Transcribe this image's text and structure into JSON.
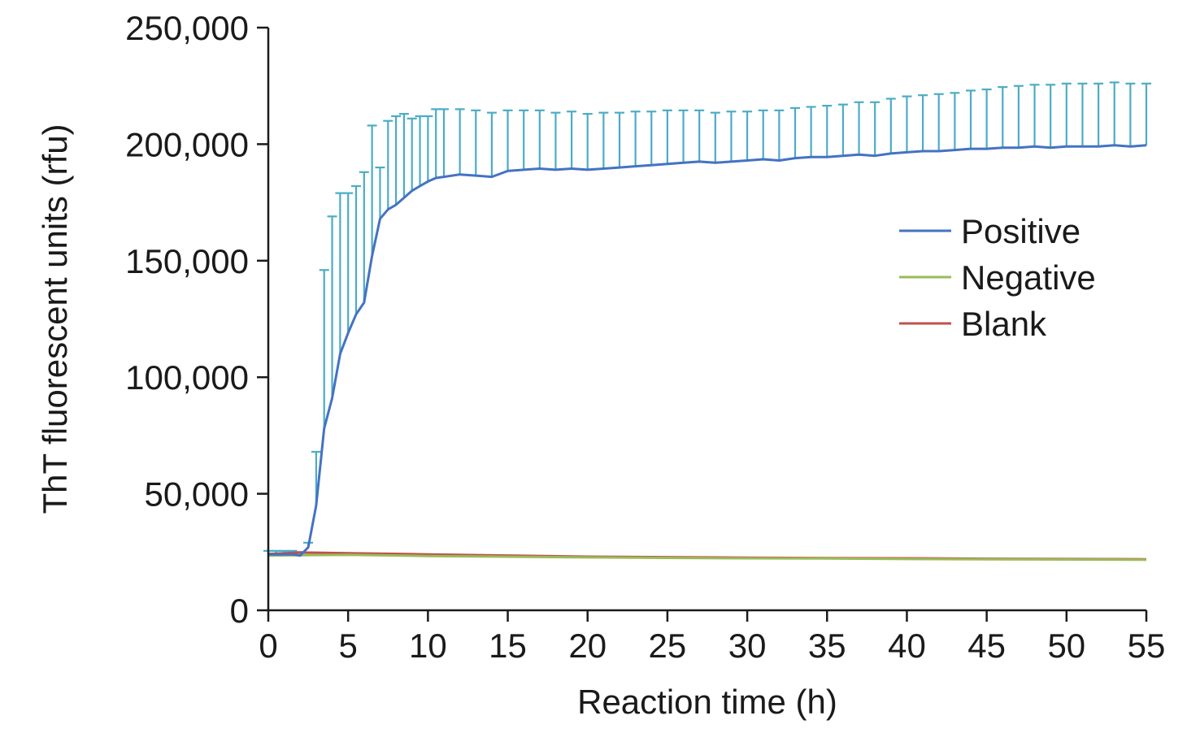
{
  "chart_data": {
    "type": "line",
    "title": "",
    "xlabel": "Reaction time (h)",
    "ylabel": "ThT fluorescent units (rfu)",
    "xlim": [
      0,
      55
    ],
    "ylim": [
      0,
      250000
    ],
    "x_ticks": [
      "0",
      "5",
      "10",
      "15",
      "20",
      "25",
      "30",
      "35",
      "40",
      "45",
      "50",
      "55"
    ],
    "y_ticks": [
      "0",
      "50,000",
      "100,000",
      "150,000",
      "200,000",
      "250,000"
    ],
    "grid": false,
    "legend_position": "right-middle",
    "error_bar_color": "#4bacc6",
    "series": [
      {
        "name": "Positive",
        "color": "#4472c4",
        "has_error_bars": true,
        "x": [
          0,
          0.5,
          1,
          1.5,
          2,
          2.5,
          3,
          3.5,
          4,
          4.5,
          5,
          5.5,
          6,
          6.5,
          7,
          7.5,
          8,
          8.5,
          9,
          9.5,
          10,
          10.5,
          11,
          12,
          13,
          14,
          15,
          16,
          17,
          18,
          19,
          20,
          21,
          22,
          23,
          24,
          25,
          26,
          27,
          28,
          29,
          30,
          31,
          32,
          33,
          34,
          35,
          36,
          37,
          38,
          39,
          40,
          41,
          42,
          43,
          44,
          45,
          46,
          47,
          48,
          49,
          50,
          51,
          52,
          53,
          54,
          55
        ],
        "y": [
          24000,
          24000,
          24000,
          24000,
          23500,
          27000,
          45000,
          78000,
          91000,
          110000,
          119000,
          127000,
          132000,
          152000,
          168000,
          172000,
          174000,
          177000,
          180000,
          182000,
          184000,
          185500,
          186000,
          187000,
          186500,
          186000,
          188500,
          189000,
          189500,
          189000,
          189500,
          189000,
          189500,
          190000,
          190500,
          191000,
          191500,
          192000,
          192500,
          192000,
          192500,
          193000,
          193500,
          193000,
          194000,
          194500,
          194500,
          195000,
          195500,
          195000,
          196000,
          196500,
          197000,
          197000,
          197500,
          198000,
          198000,
          198500,
          198500,
          199000,
          198500,
          199000,
          199000,
          199000,
          199500,
          199000,
          199500
        ],
        "err": [
          1500,
          1500,
          1500,
          1500,
          1500,
          2000,
          23000,
          68000,
          78000,
          69000,
          60000,
          55000,
          56000,
          56000,
          22000,
          38000,
          38000,
          36000,
          31000,
          30000,
          28000,
          29500,
          29000,
          28000,
          28000,
          27500,
          26000,
          25500,
          25000,
          24500,
          24500,
          24000,
          24000,
          23500,
          23500,
          23000,
          23000,
          22500,
          22000,
          21500,
          21500,
          21000,
          21000,
          21500,
          21500,
          21500,
          22000,
          22000,
          22500,
          23000,
          23500,
          24000,
          24000,
          24500,
          24500,
          25000,
          25500,
          26000,
          26500,
          26500,
          27000,
          27000,
          27000,
          27000,
          27000,
          27000,
          26500
        ]
      },
      {
        "name": "Negative",
        "color": "#9bbb59",
        "has_error_bars": false,
        "x": [
          0,
          5,
          10,
          15,
          20,
          25,
          30,
          35,
          40,
          45,
          50,
          55
        ],
        "y": [
          23500,
          23800,
          23300,
          23000,
          22700,
          22500,
          22300,
          22200,
          22000,
          21900,
          21800,
          21700
        ]
      },
      {
        "name": "Blank",
        "color": "#c0504d",
        "has_error_bars": false,
        "x": [
          0,
          2,
          5,
          10,
          15,
          20,
          25,
          30,
          35,
          40,
          45,
          50,
          55
        ],
        "y": [
          24200,
          24800,
          24500,
          24000,
          23500,
          23000,
          22800,
          22600,
          22400,
          22300,
          22100,
          22000,
          21900
        ]
      }
    ]
  }
}
